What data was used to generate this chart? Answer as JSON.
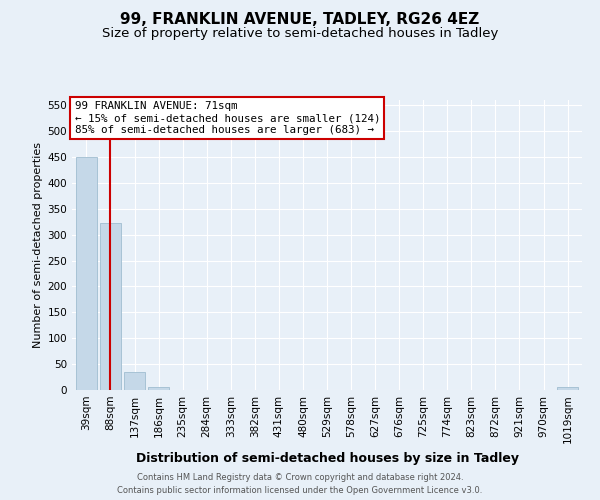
{
  "title": "99, FRANKLIN AVENUE, TADLEY, RG26 4EZ",
  "subtitle": "Size of property relative to semi-detached houses in Tadley",
  "xlabel": "Distribution of semi-detached houses by size in Tadley",
  "ylabel": "Number of semi-detached properties",
  "footer_line1": "Contains HM Land Registry data © Crown copyright and database right 2024.",
  "footer_line2": "Contains public sector information licensed under the Open Government Licence v3.0.",
  "categories": [
    "39sqm",
    "88sqm",
    "137sqm",
    "186sqm",
    "235sqm",
    "284sqm",
    "333sqm",
    "382sqm",
    "431sqm",
    "480sqm",
    "529sqm",
    "578sqm",
    "627sqm",
    "676sqm",
    "725sqm",
    "774sqm",
    "823sqm",
    "872sqm",
    "921sqm",
    "970sqm",
    "1019sqm"
  ],
  "values": [
    449,
    322,
    35,
    6,
    0,
    0,
    0,
    0,
    0,
    0,
    0,
    0,
    0,
    0,
    0,
    0,
    0,
    0,
    0,
    0,
    5
  ],
  "bar_color": "#c5d8e8",
  "bar_edge_color": "#a0bdd0",
  "property_bar_index": 1,
  "property_line_color": "#cc0000",
  "property_name": "99 FRANKLIN AVENUE: 71sqm",
  "annotation_line1": "← 15% of semi-detached houses are smaller (124)",
  "annotation_line2": "85% of semi-detached houses are larger (683) →",
  "annotation_box_color": "#ffffff",
  "annotation_box_edge_color": "#cc0000",
  "ylim": [
    0,
    560
  ],
  "yticks": [
    0,
    50,
    100,
    150,
    200,
    250,
    300,
    350,
    400,
    450,
    500,
    550
  ],
  "background_color": "#e8f0f8",
  "plot_bg_color": "#e8f0f8",
  "title_fontsize": 11,
  "subtitle_fontsize": 9.5,
  "tick_fontsize": 7.5,
  "ylabel_fontsize": 8,
  "xlabel_fontsize": 9,
  "annotation_fontsize": 7.8,
  "footer_fontsize": 6.0
}
